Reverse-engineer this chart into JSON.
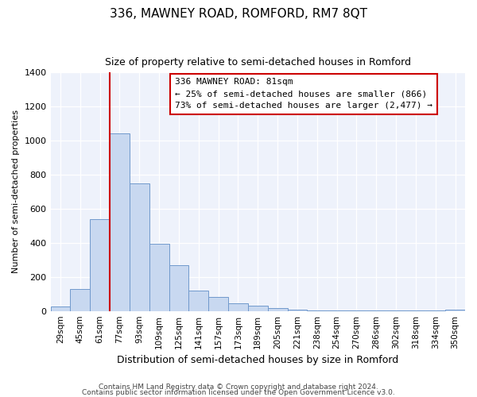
{
  "title": "336, MAWNEY ROAD, ROMFORD, RM7 8QT",
  "subtitle": "Size of property relative to semi-detached houses in Romford",
  "xlabel": "Distribution of semi-detached houses by size in Romford",
  "ylabel": "Number of semi-detached properties",
  "bar_color": "#c8d8f0",
  "bar_edge_color": "#7099cc",
  "bin_labels": [
    "29sqm",
    "45sqm",
    "61sqm",
    "77sqm",
    "93sqm",
    "109sqm",
    "125sqm",
    "141sqm",
    "157sqm",
    "173sqm",
    "189sqm",
    "205sqm",
    "221sqm",
    "238sqm",
    "254sqm",
    "270sqm",
    "286sqm",
    "302sqm",
    "318sqm",
    "334sqm",
    "350sqm"
  ],
  "bin_values": [
    25,
    130,
    540,
    1040,
    750,
    395,
    270,
    120,
    80,
    45,
    30,
    15,
    8,
    5,
    3,
    2,
    1,
    1,
    1,
    1,
    10
  ],
  "ylim": [
    0,
    1400
  ],
  "yticks": [
    0,
    200,
    400,
    600,
    800,
    1000,
    1200,
    1400
  ],
  "red_line_index": 3,
  "annotation_title": "336 MAWNEY ROAD: 81sqm",
  "annotation_line1": "← 25% of semi-detached houses are smaller (866)",
  "annotation_line2": "73% of semi-detached houses are larger (2,477) →",
  "annotation_box_color": "#ffffff",
  "annotation_box_edge": "#cc0000",
  "red_line_color": "#cc0000",
  "footer1": "Contains HM Land Registry data © Crown copyright and database right 2024.",
  "footer2": "Contains public sector information licensed under the Open Government Licence v3.0.",
  "bg_color": "#eef2fb"
}
